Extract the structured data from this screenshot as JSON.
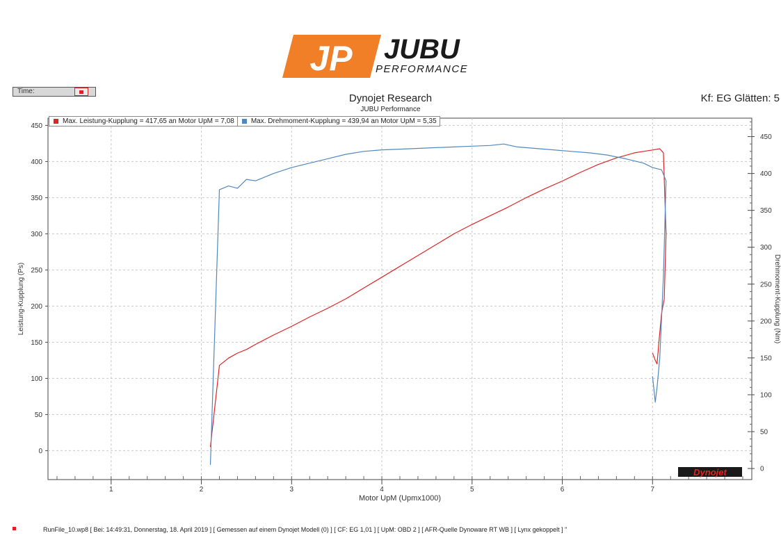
{
  "logo": {
    "mark": "JP",
    "brand": "JUBU",
    "sub": "PERFORMANCE",
    "orange": "#f07f28"
  },
  "time_label": "Time:",
  "kf_label": "Kf: EG Glätten: 5",
  "footer": "RunFile_10.wp8 [ Bei: 14:49:31, Donnerstag, 18. April 2019 ] [ Gemessen auf einem Dynojet Modell (0) ] [ CF: EG 1,01 ] [ UpM: OBD 2 ] [ AFR-Quelle  Dynoware RT WB ] [ Lynx gekoppelt ] \"",
  "watermark": "Dynojet",
  "chart_data": {
    "type": "line",
    "title": "Dynojet Research",
    "subtitle": "JUBU Performance",
    "xlabel": "Motor UpM (Upmx1000)",
    "ylabel_left": "Leistung-Kupplung (Ps)",
    "ylabel_right": "Drehmoment-Kupplung (Nm)",
    "xlim": [
      0.3,
      8.1
    ],
    "ylim_left": [
      -40,
      460
    ],
    "ylim_right": [
      -15,
      475
    ],
    "x_ticks": [
      1,
      2,
      3,
      4,
      5,
      6,
      7
    ],
    "x_tick_labels": [
      "1",
      "2",
      "3",
      "4",
      "5",
      "6",
      "7"
    ],
    "y_ticks_left": [
      0,
      50,
      100,
      150,
      200,
      250,
      300,
      350,
      400,
      450
    ],
    "y_tick_labels_left": [
      "0",
      "50",
      "100",
      "150",
      "200",
      "250",
      "300",
      "350",
      "400",
      "450"
    ],
    "y_ticks_right": [
      0,
      50,
      100,
      150,
      200,
      250,
      300,
      350,
      400,
      450
    ],
    "y_tick_labels_right": [
      "0",
      "50",
      "100",
      "150",
      "200",
      "250",
      "300",
      "350",
      "400",
      "450"
    ],
    "grid": true,
    "legend_position": "top-left",
    "series": [
      {
        "name": "Max. Leistung-Kupplung = 417,65 an Motor UpM = 7,08",
        "axis": "left",
        "color": "#e02424",
        "x": [
          2.1,
          2.2,
          2.3,
          2.4,
          2.5,
          2.6,
          2.8,
          3.0,
          3.2,
          3.4,
          3.6,
          3.8,
          4.0,
          4.2,
          4.4,
          4.6,
          4.8,
          5.0,
          5.2,
          5.4,
          5.6,
          5.8,
          6.0,
          6.2,
          6.4,
          6.6,
          6.8,
          6.9,
          7.0,
          7.08,
          7.12,
          7.15,
          7.13,
          7.1,
          7.07,
          7.05,
          7.03,
          7.0
        ],
        "y": [
          5,
          118,
          128,
          135,
          140,
          147,
          160,
          172,
          185,
          197,
          210,
          225,
          240,
          255,
          270,
          285,
          300,
          313,
          325,
          337,
          350,
          362,
          373,
          385,
          396,
          405,
          412,
          414,
          416,
          417.65,
          412,
          300,
          210,
          190,
          150,
          120,
          125,
          135
        ]
      },
      {
        "name": "Max. Drehmoment-Kupplung = 439,94 an Motor UpM = 5,35",
        "axis": "right",
        "color": "#4f88c0",
        "x": [
          2.1,
          2.2,
          2.3,
          2.4,
          2.5,
          2.6,
          2.8,
          3.0,
          3.2,
          3.4,
          3.6,
          3.8,
          4.0,
          4.2,
          4.4,
          4.6,
          4.8,
          5.0,
          5.2,
          5.35,
          5.5,
          5.7,
          5.9,
          6.1,
          6.3,
          6.5,
          6.7,
          6.9,
          7.0,
          7.1,
          7.15,
          7.12,
          7.08,
          7.05,
          7.03,
          7.0
        ],
        "y": [
          5,
          378,
          383,
          380,
          392,
          390,
          400,
          408,
          414,
          420,
          426,
          430,
          432,
          433,
          434,
          435,
          436,
          437,
          438,
          439.94,
          436,
          434,
          432,
          430,
          428,
          425,
          420,
          414,
          408,
          405,
          390,
          260,
          150,
          110,
          90,
          125
        ]
      }
    ]
  }
}
